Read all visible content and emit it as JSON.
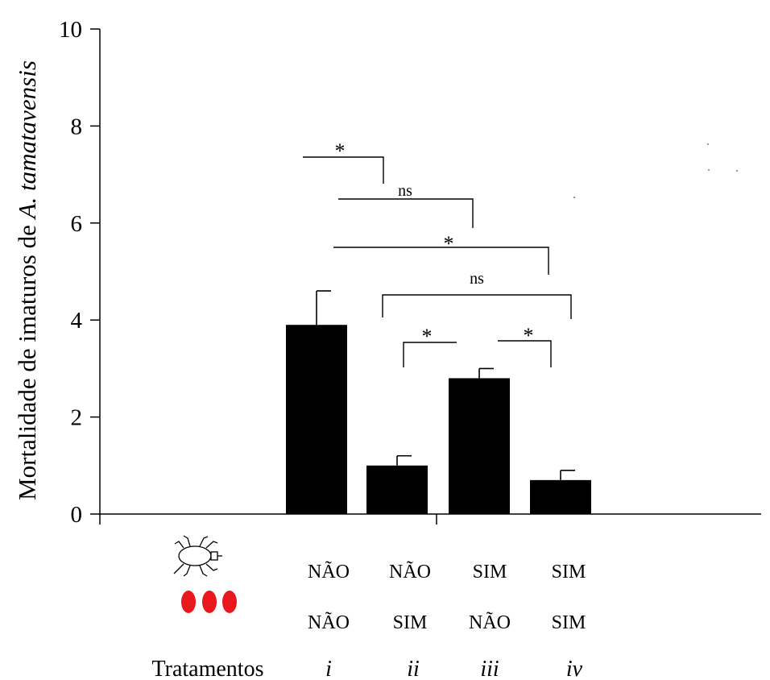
{
  "chart_data": {
    "type": "bar",
    "ylabel_prefix": "Mortalidade de imaturos de ",
    "ylabel_species": "A. tamatavensis",
    "ylim": [
      0,
      10
    ],
    "yticks": [
      0,
      2,
      4,
      6,
      8,
      10
    ],
    "values": [
      3.9,
      1.0,
      2.8,
      0.7
    ],
    "errors": [
      0.7,
      0.2,
      0.2,
      0.2
    ],
    "categories": [
      "i",
      "ii",
      "iii",
      "iv"
    ],
    "x_axis_title": "Tratamentos",
    "factor_rows": [
      {
        "icon": "mite-icon",
        "values": [
          "NÃO",
          "NÃO",
          "SIM",
          "SIM"
        ]
      },
      {
        "icon": "eggs-icon",
        "values": [
          "NÃO",
          "SIM",
          "NÃO",
          "SIM"
        ]
      }
    ],
    "comparisons": [
      {
        "from": 0,
        "to": 1,
        "label": "*"
      },
      {
        "from": 0,
        "to": 2,
        "label": "ns"
      },
      {
        "from": 0,
        "to": 3,
        "label": "*"
      },
      {
        "from": 1,
        "to": 3,
        "label": "ns"
      },
      {
        "from": 1,
        "to": 2,
        "label": "*"
      },
      {
        "from": 2,
        "to": 3,
        "label": "*"
      }
    ],
    "bar_color": "#000000",
    "egg_color": "#e8181e",
    "grid": false,
    "legend": "none"
  }
}
